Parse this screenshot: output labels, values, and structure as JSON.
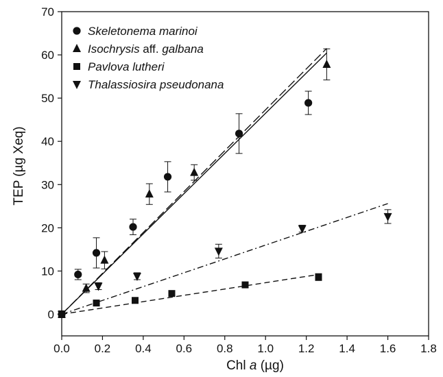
{
  "chart_data": {
    "type": "scatter",
    "xlabel_prefix": "Chl ",
    "xlabel_italic": "a",
    "xlabel_suffix": " (µg)",
    "ylabel": "TEP (µg Xeq)",
    "xlim": [
      0,
      1.8
    ],
    "ylim": [
      -5,
      70
    ],
    "x_ticks": [
      0,
      0.2,
      0.4,
      0.6,
      0.8,
      1.0,
      1.2,
      1.4,
      1.6,
      1.8
    ],
    "x_tick_labels": [
      "0.0",
      "0.2",
      "0.4",
      "0.6",
      "0.8",
      "1.0",
      "1.2",
      "1.4",
      "1.6",
      "1.8"
    ],
    "y_ticks": [
      0,
      10,
      20,
      30,
      40,
      50,
      60,
      70
    ],
    "y_tick_labels": [
      "0",
      "10",
      "20",
      "30",
      "40",
      "50",
      "60",
      "70"
    ],
    "grid": false,
    "legend_position": "top-left",
    "series": [
      {
        "name": "Skeletonema marinoi",
        "name_parts": [
          {
            "text": "Skeletonema marinoi",
            "italic": true
          }
        ],
        "marker": "circle",
        "x": [
          0.0,
          0.08,
          0.17,
          0.35,
          0.52,
          0.87,
          1.21
        ],
        "y": [
          0.0,
          9.2,
          14.2,
          20.2,
          31.8,
          41.8,
          48.9
        ],
        "err": [
          0.8,
          1.2,
          3.5,
          1.8,
          3.5,
          4.6,
          2.7
        ],
        "fit": {
          "slope": 46.5,
          "x_range": [
            0,
            1.3
          ],
          "dash": "solid"
        }
      },
      {
        "name": "Isochrysis aff. galbana",
        "name_parts": [
          {
            "text": "Isochrysis",
            "italic": true
          },
          {
            "text": " aff. ",
            "italic": false
          },
          {
            "text": "galbana",
            "italic": true
          }
        ],
        "marker": "triangle-up",
        "x": [
          0.0,
          0.12,
          0.21,
          0.43,
          0.65,
          1.3
        ],
        "y": [
          0.0,
          6.0,
          12.5,
          27.8,
          32.8,
          57.8
        ],
        "err": [
          0.6,
          1.0,
          2.0,
          2.4,
          1.8,
          3.6
        ],
        "fit": {
          "slope": 47.3,
          "x_range": [
            0,
            1.3
          ],
          "dash": "long-dash"
        }
      },
      {
        "name": "Pavlova lutheri",
        "name_parts": [
          {
            "text": "Pavlova lutheri",
            "italic": true
          }
        ],
        "marker": "square",
        "x": [
          0.0,
          0.17,
          0.36,
          0.54,
          0.9,
          1.26
        ],
        "y": [
          0.0,
          2.6,
          3.2,
          4.8,
          6.8,
          8.6
        ],
        "err": [
          0.5,
          0.6,
          0.6,
          0.6,
          0.6,
          0.8
        ],
        "fit": {
          "slope": 7.3,
          "x_range": [
            0,
            1.27
          ],
          "dash": "dash"
        }
      },
      {
        "name": "Thalassiosira pseudonana",
        "name_parts": [
          {
            "text": "Thalassiosira pseudonana",
            "italic": true
          }
        ],
        "marker": "triangle-down",
        "x": [
          0.0,
          0.18,
          0.37,
          0.77,
          1.18,
          1.6
        ],
        "y": [
          0.0,
          6.5,
          8.8,
          14.6,
          19.8,
          22.6
        ],
        "err": [
          0.5,
          0.8,
          0.8,
          1.6,
          0.8,
          1.6
        ],
        "fit": {
          "slope": 16.0,
          "x_range": [
            0,
            1.6
          ],
          "dash": "dash-dot"
        }
      }
    ]
  }
}
